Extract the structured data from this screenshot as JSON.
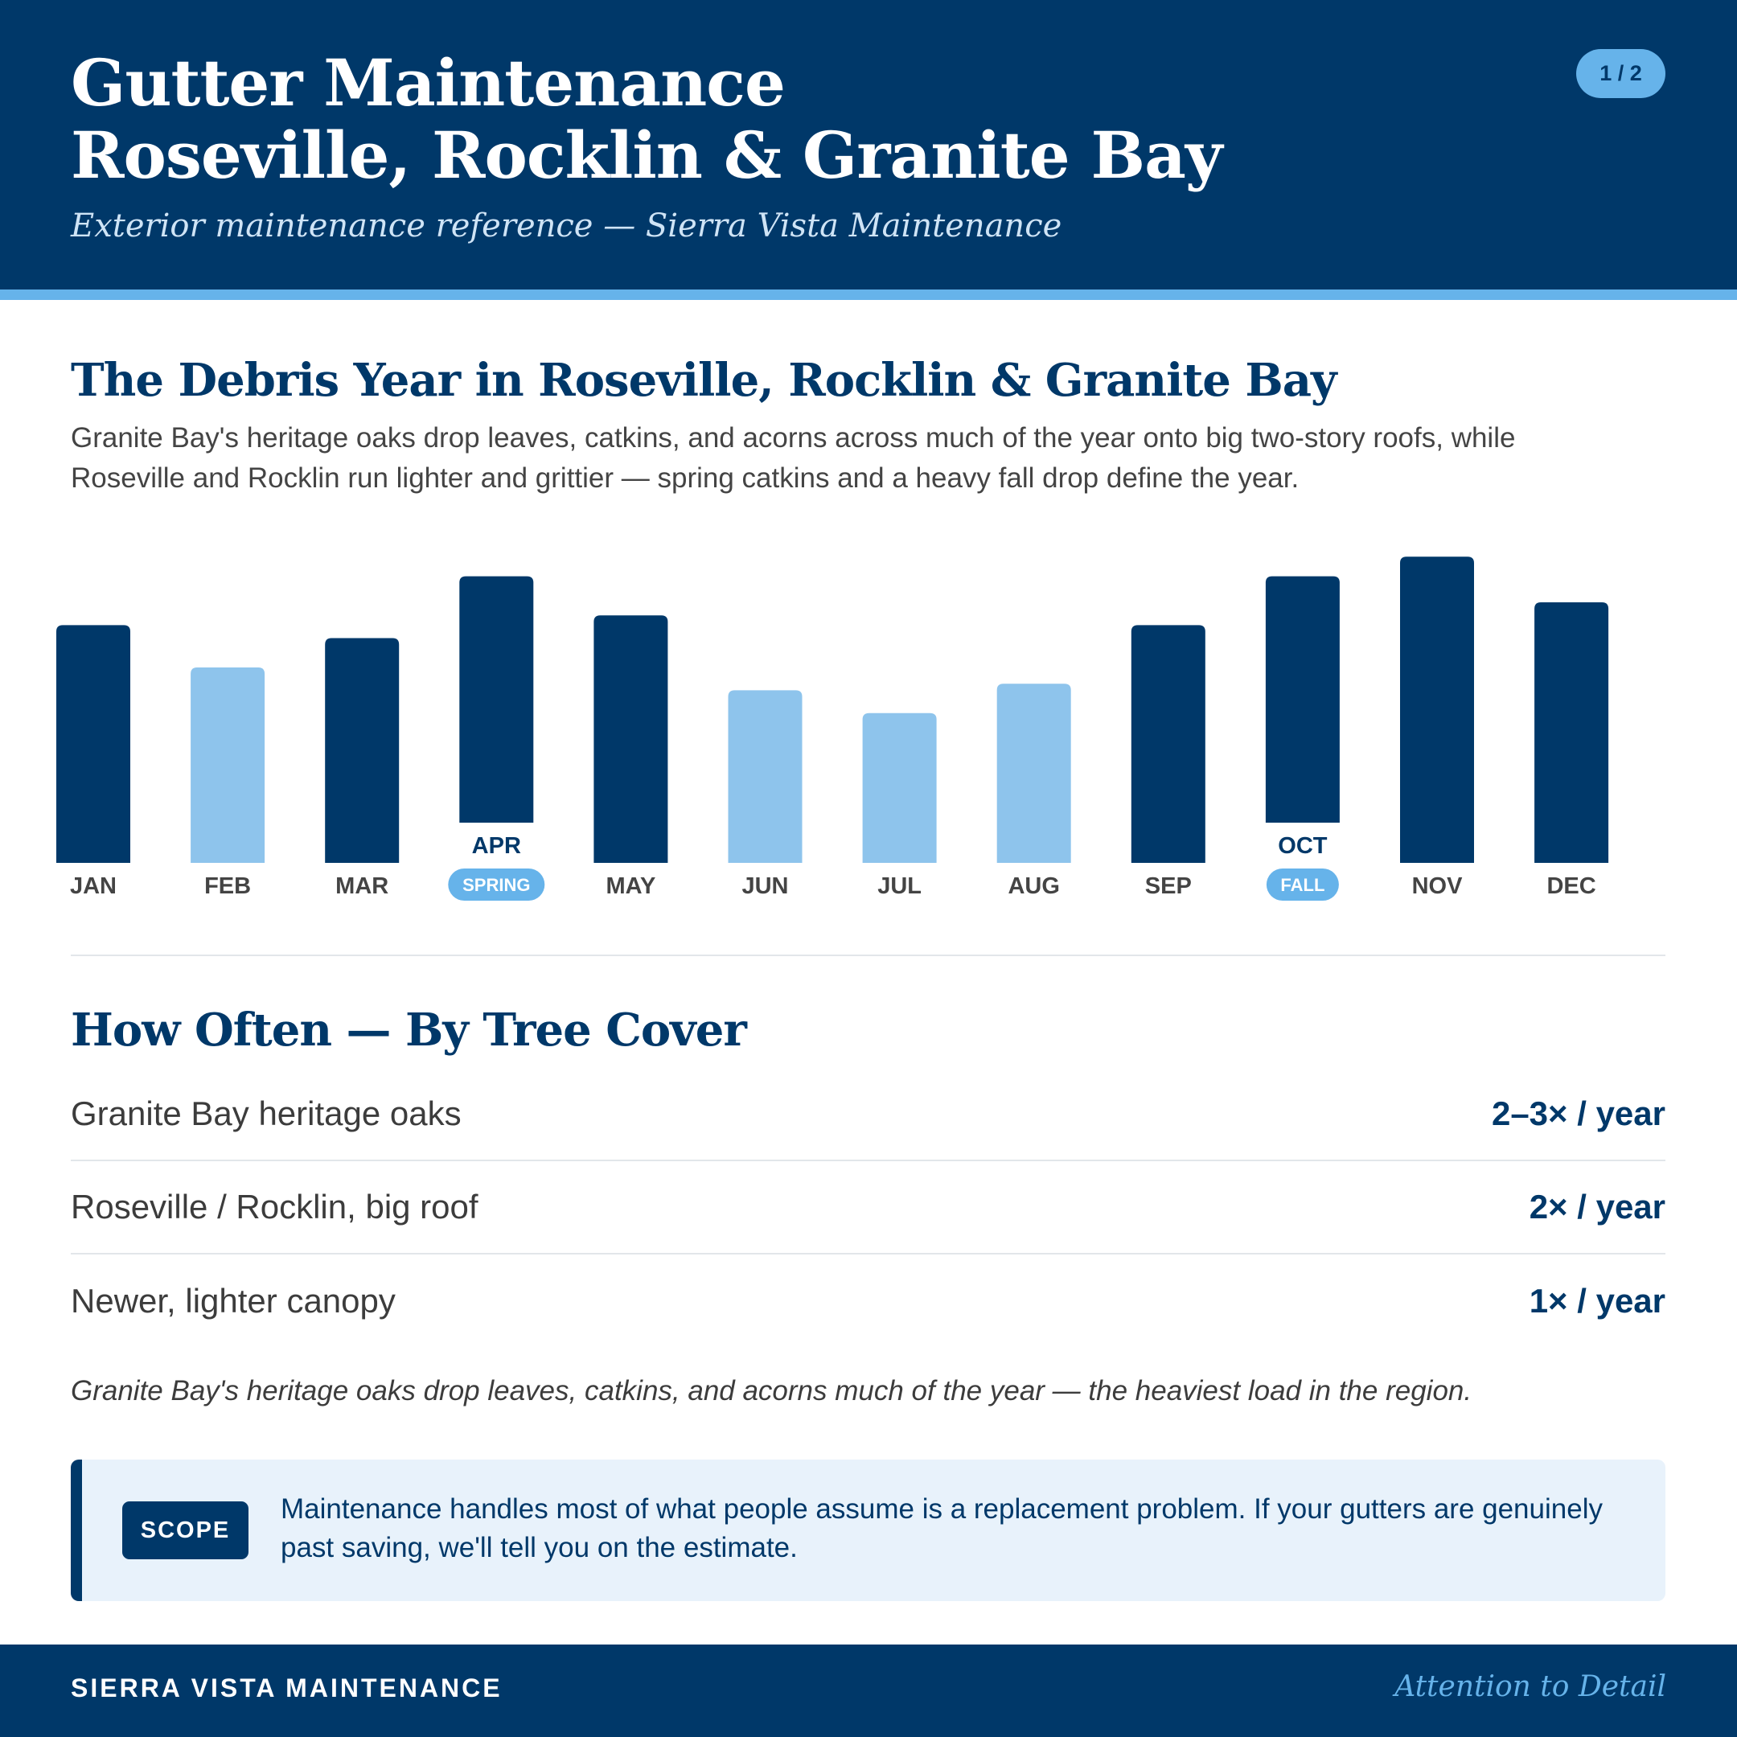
{
  "header": {
    "title_line1": "Gutter Maintenance",
    "title_line2": "Roseville, Rocklin & Granite Bay",
    "subtitle": "Exterior maintenance reference — Sierra Vista Maintenance",
    "page_indicator": "1 / 2"
  },
  "debris_section": {
    "title": "The Debris Year in Roseville, Rocklin & Granite Bay",
    "intro": "Granite Bay's heritage oaks drop leaves, catkins, and acorns across much of the year onto big two-story roofs, while Roseville and Rocklin run lighter and grittier — spring catkins and a heavy fall drop define the year."
  },
  "chart_data": {
    "type": "bar",
    "categories": [
      "JAN",
      "FEB",
      "MAR",
      "APR",
      "MAY",
      "JUN",
      "JUL",
      "AUG",
      "SEP",
      "OCT",
      "NOV",
      "DEC"
    ],
    "values": [
      73,
      60,
      69,
      88,
      76,
      53,
      46,
      55,
      73,
      88,
      94,
      80
    ],
    "ylim": [
      0,
      100
    ],
    "heavy": [
      true,
      false,
      true,
      true,
      true,
      false,
      false,
      false,
      true,
      true,
      true,
      true
    ],
    "season_markers": [
      {
        "month": "APR",
        "label": "SPRING"
      },
      {
        "month": "OCT",
        "label": "FALL"
      }
    ],
    "colors": {
      "heavy": "#003869",
      "light": "#8ec4ec",
      "marker": "#66b3ea"
    },
    "grid": false,
    "legend": "none"
  },
  "frequency_section": {
    "title": "How Often — By Tree Cover",
    "rows": [
      {
        "label": "Granite Bay heritage oaks",
        "value": "2–3× / year"
      },
      {
        "label": "Roseville / Rocklin, big roof",
        "value": "2× / year"
      },
      {
        "label": "Newer, lighter canopy",
        "value": "1× / year"
      }
    ],
    "note": "Granite Bay's heritage oaks drop leaves, catkins, and acorns much of the year — the heaviest load in the region."
  },
  "scope": {
    "badge": "SCOPE",
    "text": "Maintenance handles most of what people assume is a replacement problem. If your gutters are genuinely past saving, we'll tell you on the estimate."
  },
  "footer": {
    "brand": "SIERRA VISTA MAINTENANCE",
    "tagline": "Attention to Detail"
  }
}
